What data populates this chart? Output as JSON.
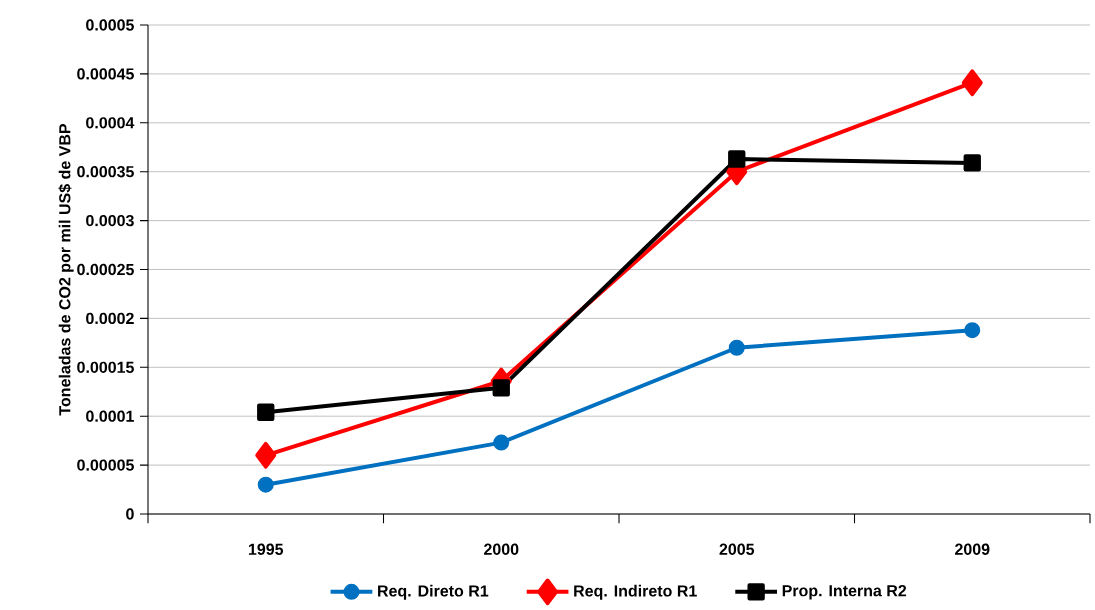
{
  "chart_data": {
    "type": "line",
    "ylabel": "Toneladas de CO2 por mil US$ de VBP",
    "categories": [
      "1995",
      "2000",
      "2005",
      "2009"
    ],
    "series": [
      {
        "name": "Req. Direto R1",
        "color": "#0070c0",
        "marker": "circle",
        "values": [
          3e-05,
          7.3e-05,
          0.00017,
          0.000188
        ]
      },
      {
        "name": "Req. Indireto R1",
        "color": "#ff0000",
        "marker": "diamond",
        "values": [
          6e-05,
          0.000136,
          0.00035,
          0.000441
        ]
      },
      {
        "name": "Prop. Interna R2",
        "color": "#000000",
        "marker": "square",
        "values": [
          0.000104,
          0.000129,
          0.000363,
          0.000359
        ]
      }
    ],
    "ylim": [
      0,
      0.0005
    ],
    "yticks": [
      0,
      {
        "value": 5e-05,
        "label": "0.00005"
      },
      {
        "value": 0.0001,
        "label": "0.0001"
      },
      {
        "value": 0.00015,
        "label": "0.00015"
      },
      {
        "value": 0.0002,
        "label": "0.0002"
      },
      {
        "value": 0.00025,
        "label": "0.00025"
      },
      {
        "value": 0.0003,
        "label": "0.0003"
      },
      {
        "value": 0.00035,
        "label": "0.00035"
      },
      {
        "value": 0.0004,
        "label": "0.0004"
      },
      {
        "value": 0.00045,
        "label": "0.00045"
      },
      {
        "value": 0.0005,
        "label": "0.0005"
      }
    ],
    "grid": "y",
    "legend": "bottom",
    "line_style": "solid"
  }
}
